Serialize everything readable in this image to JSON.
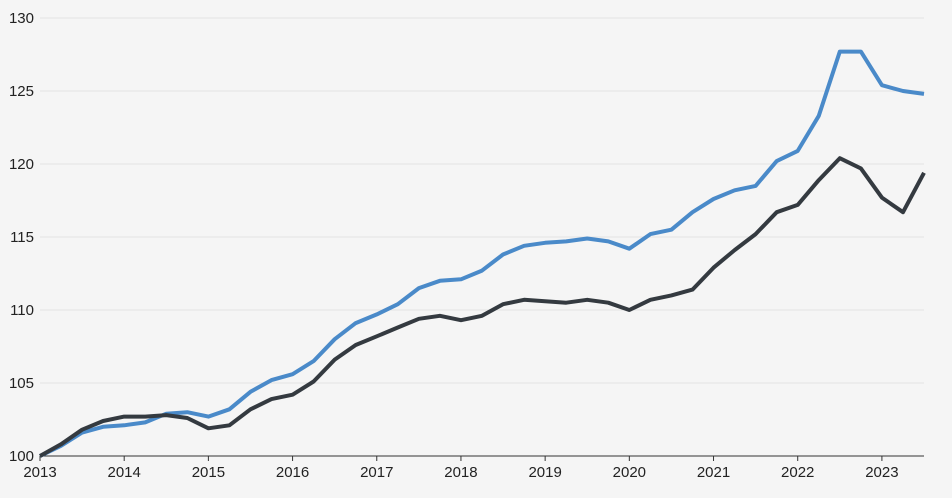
{
  "chart_data": {
    "type": "line",
    "title": "",
    "xlabel": "",
    "ylabel": "",
    "grid": true,
    "xlim": [
      2013,
      2023.5
    ],
    "ylim": [
      100,
      130
    ],
    "yticks": [
      100,
      105,
      110,
      115,
      120,
      125,
      130
    ],
    "xticks": [
      2013,
      2014,
      2015,
      2016,
      2017,
      2018,
      2019,
      2020,
      2021,
      2022,
      2023
    ],
    "x": [
      2013.0,
      2013.25,
      2013.5,
      2013.75,
      2014.0,
      2014.25,
      2014.5,
      2014.75,
      2015.0,
      2015.25,
      2015.5,
      2015.75,
      2016.0,
      2016.25,
      2016.5,
      2016.75,
      2017.0,
      2017.25,
      2017.5,
      2017.75,
      2018.0,
      2018.25,
      2018.5,
      2018.75,
      2019.0,
      2019.25,
      2019.5,
      2019.75,
      2020.0,
      2020.25,
      2020.5,
      2020.75,
      2021.0,
      2021.25,
      2021.5,
      2021.75,
      2022.0,
      2022.25,
      2022.5,
      2022.75,
      2023.0,
      2023.25,
      2023.5
    ],
    "series": [
      {
        "color": "#4a8ac9",
        "values": [
          100.0,
          100.7,
          101.6,
          102.0,
          102.1,
          102.3,
          102.9,
          103.0,
          102.7,
          103.2,
          104.4,
          105.2,
          105.6,
          106.5,
          108.0,
          109.1,
          109.7,
          110.4,
          111.5,
          112.0,
          112.1,
          112.7,
          113.8,
          114.4,
          114.6,
          114.7,
          114.9,
          114.7,
          114.2,
          115.2,
          115.5,
          116.7,
          117.6,
          118.2,
          118.5,
          120.2,
          120.9,
          123.3,
          127.7,
          127.7,
          125.4,
          125.0,
          124.8
        ]
      },
      {
        "color": "#343a40",
        "values": [
          100.0,
          100.8,
          101.8,
          102.4,
          102.7,
          102.7,
          102.8,
          102.6,
          101.9,
          102.1,
          103.2,
          103.9,
          104.2,
          105.1,
          106.6,
          107.6,
          108.2,
          108.8,
          109.4,
          109.6,
          109.3,
          109.6,
          110.4,
          110.7,
          110.6,
          110.5,
          110.7,
          110.5,
          110.0,
          110.7,
          111.0,
          111.4,
          112.9,
          114.1,
          115.2,
          116.7,
          117.2,
          118.9,
          120.4,
          119.7,
          117.7,
          116.7,
          119.4
        ]
      }
    ]
  }
}
